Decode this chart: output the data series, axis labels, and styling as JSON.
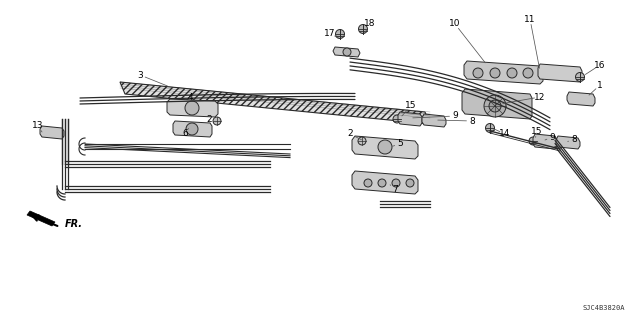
{
  "bg_color": "#ffffff",
  "line_color": "#2a2a2a",
  "fig_width": 6.4,
  "fig_height": 3.19,
  "dpi": 100,
  "footer_text": "SJC4B3820A"
}
